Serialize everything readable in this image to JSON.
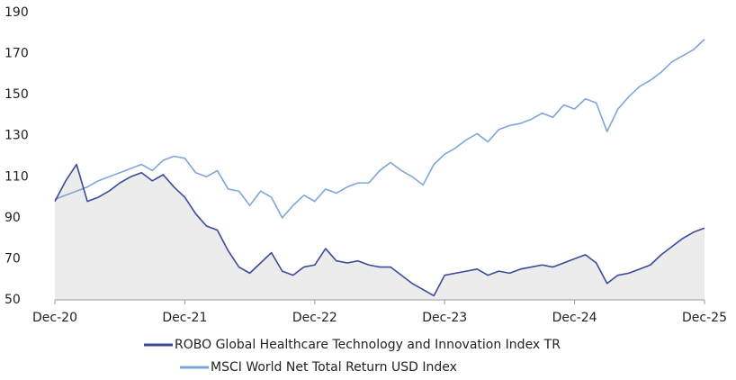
{
  "chart_data": {
    "type": "line",
    "x": [
      "Dec-20",
      null,
      null,
      null,
      null,
      null,
      null,
      null,
      null,
      null,
      null,
      null,
      "Dec-21",
      null,
      null,
      null,
      null,
      null,
      null,
      null,
      null,
      null,
      null,
      null,
      "Dec-22",
      null,
      null,
      null,
      null,
      null,
      null,
      null,
      null,
      null,
      null,
      null,
      "Dec-23",
      null,
      null,
      null,
      null,
      null,
      null,
      null,
      null,
      null,
      null,
      null,
      "Dec-24",
      null,
      null,
      null,
      null,
      null,
      null,
      null,
      null,
      null,
      null,
      null,
      "Dec-25"
    ],
    "series": [
      {
        "name": "ROBO Global Healthcare Technology and Innovation Index TR",
        "color": "#3b4a9a",
        "area": true,
        "area_color": "#ececec",
        "values": [
          98,
          108,
          116,
          98,
          100,
          103,
          107,
          110,
          112,
          108,
          111,
          105,
          100,
          92,
          86,
          84,
          74,
          66,
          63,
          68,
          73,
          64,
          62,
          66,
          67,
          75,
          69,
          68,
          69,
          67,
          66,
          66,
          62,
          58,
          55,
          52,
          62,
          63,
          64,
          65,
          62,
          64,
          63,
          65,
          66,
          67,
          66,
          68,
          70,
          72,
          68,
          58,
          62,
          63,
          65,
          67,
          72,
          76,
          80,
          83,
          85
        ]
      },
      {
        "name": "MSCI World Net Total Return USD Index",
        "color": "#7fa6d9",
        "values": [
          99,
          101,
          103,
          105,
          108,
          110,
          112,
          114,
          116,
          113,
          118,
          120,
          119,
          112,
          110,
          113,
          104,
          103,
          96,
          103,
          100,
          90,
          96,
          101,
          98,
          104,
          102,
          105,
          107,
          107,
          113,
          117,
          113,
          110,
          106,
          116,
          121,
          124,
          128,
          131,
          127,
          133,
          135,
          136,
          138,
          141,
          139,
          145,
          143,
          148,
          146,
          132,
          143,
          149,
          154,
          157,
          161,
          166,
          169,
          172,
          177
        ]
      }
    ],
    "ylim": [
      50,
      190
    ],
    "yticks": [
      50,
      70,
      90,
      110,
      130,
      150,
      170,
      190
    ],
    "grid": false,
    "legend": "bottom"
  }
}
